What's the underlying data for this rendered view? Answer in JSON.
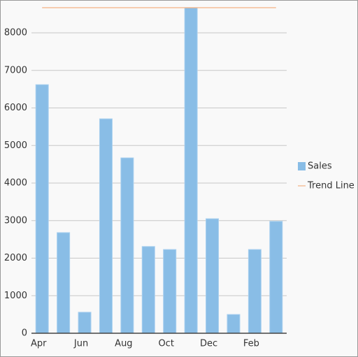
{
  "chart_data": {
    "type": "bar",
    "categories": [
      "Apr",
      null,
      "Jun",
      null,
      "Aug",
      null,
      "Oct",
      null,
      "Dec",
      null,
      "Feb",
      null
    ],
    "series": [
      {
        "name": "Sales",
        "type": "bar",
        "color": "#89bde6",
        "values": [
          6620,
          2680,
          560,
          5710,
          4670,
          2310,
          2230,
          8670,
          3050,
          500,
          2230,
          2980
        ]
      },
      {
        "name": "Trend Line",
        "type": "line",
        "color": "#f4b183",
        "values": [
          8670,
          8670,
          8670,
          8670,
          8670,
          8670,
          8670,
          8670,
          8670,
          8670,
          8670,
          8670
        ]
      }
    ],
    "ylim": [
      0,
      8670
    ],
    "yticks": [
      0,
      1000,
      2000,
      3000,
      4000,
      5000,
      6000,
      7000,
      8000
    ],
    "grid": true,
    "legend": "right"
  }
}
